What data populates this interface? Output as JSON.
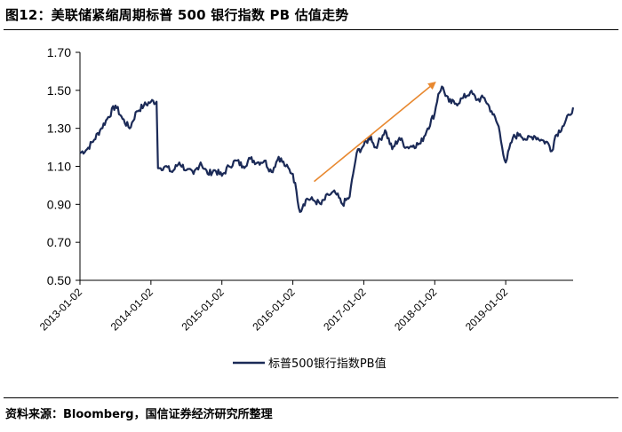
{
  "header": {
    "title": "图12：美联储紧缩周期标普 500 银行指数 PB 估值走势"
  },
  "footer": {
    "source": "资料来源：Bloomberg，国信证券经济研究所整理"
  },
  "colors": {
    "series": "#1b2a57",
    "trend_arrow": "#e8882f",
    "axis": "#000000"
  },
  "chart_data": {
    "type": "line",
    "title": "美联储紧缩周期标普 500 银行指数 PB 估值走势",
    "xlabel": "",
    "ylabel": "",
    "ylim": [
      0.5,
      1.7
    ],
    "yticks": [
      "0.50",
      "0.70",
      "0.90",
      "1.10",
      "1.30",
      "1.50",
      "1.70"
    ],
    "xticks": [
      "2013-01-02",
      "2014-01-02",
      "2015-01-02",
      "2016-01-02",
      "2017-01-02",
      "2018-01-02",
      "2019-01-02"
    ],
    "xlim": [
      2013.0,
      2019.95
    ],
    "legend_position": "bottom",
    "series": [
      {
        "name": "标普500银行指数PB值",
        "x": [
          2013.0,
          2013.1,
          2013.2,
          2013.3,
          2013.4,
          2013.5,
          2013.6,
          2013.7,
          2013.8,
          2013.9,
          2014.0,
          2014.08,
          2014.12,
          2014.2,
          2014.3,
          2014.4,
          2014.5,
          2014.6,
          2014.7,
          2014.8,
          2014.9,
          2015.0,
          2015.1,
          2015.2,
          2015.3,
          2015.4,
          2015.5,
          2015.6,
          2015.7,
          2015.8,
          2015.9,
          2016.0,
          2016.05,
          2016.1,
          2016.15,
          2016.2,
          2016.3,
          2016.4,
          2016.5,
          2016.6,
          2016.7,
          2016.8,
          2016.85,
          2016.9,
          2017.0,
          2017.1,
          2017.15,
          2017.2,
          2017.3,
          2017.4,
          2017.5,
          2017.6,
          2017.7,
          2017.8,
          2017.9,
          2018.0,
          2018.05,
          2018.1,
          2018.2,
          2018.3,
          2018.4,
          2018.5,
          2018.6,
          2018.7,
          2018.8,
          2018.9,
          2018.95,
          2019.0,
          2019.1,
          2019.2,
          2019.3,
          2019.4,
          2019.5,
          2019.6,
          2019.65,
          2019.7,
          2019.8,
          2019.9,
          2019.95
        ],
        "values": [
          1.17,
          1.19,
          1.24,
          1.3,
          1.36,
          1.42,
          1.35,
          1.3,
          1.39,
          1.42,
          1.44,
          1.44,
          1.09,
          1.1,
          1.07,
          1.12,
          1.08,
          1.06,
          1.12,
          1.06,
          1.08,
          1.05,
          1.1,
          1.13,
          1.1,
          1.14,
          1.12,
          1.13,
          1.07,
          1.15,
          1.1,
          1.06,
          0.97,
          0.86,
          0.9,
          0.93,
          0.92,
          0.9,
          0.95,
          0.96,
          0.9,
          0.94,
          1.06,
          1.17,
          1.21,
          1.26,
          1.2,
          1.22,
          1.29,
          1.19,
          1.25,
          1.2,
          1.21,
          1.22,
          1.3,
          1.38,
          1.48,
          1.52,
          1.44,
          1.43,
          1.46,
          1.49,
          1.45,
          1.46,
          1.39,
          1.31,
          1.2,
          1.12,
          1.25,
          1.27,
          1.24,
          1.26,
          1.24,
          1.22,
          1.18,
          1.26,
          1.31,
          1.37,
          1.41
        ]
      }
    ],
    "annotations": [
      {
        "type": "arrow",
        "from": [
          2016.3,
          1.02
        ],
        "to": [
          2018.0,
          1.54
        ]
      }
    ]
  }
}
